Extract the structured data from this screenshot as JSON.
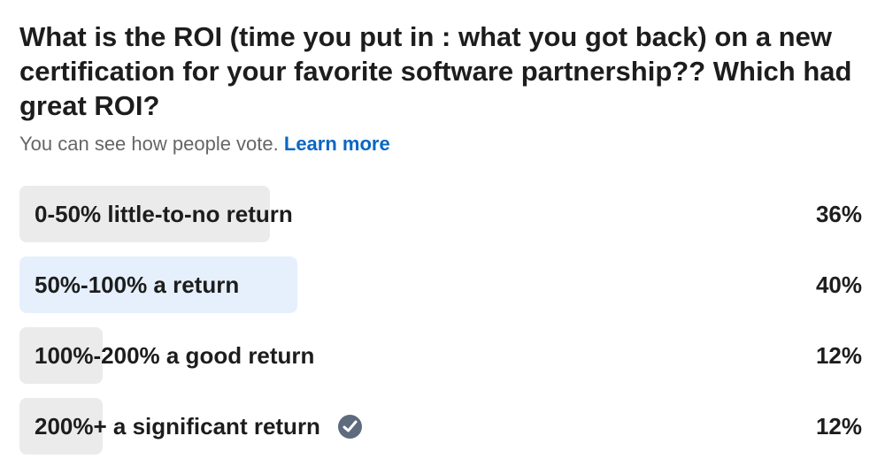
{
  "poll": {
    "question": "What is the ROI (time you put in : what you got back) on a new certification for your favorite software partnership?? Which had great ROI?",
    "visibility_note": "You can see how people vote.",
    "learn_more": "Learn more",
    "selected_color": "#e5f0fc",
    "bar_color": "#ebebeb",
    "options": [
      {
        "label": "0-50% little-to-no return",
        "percent_label": "36%",
        "percent": 36,
        "selected": false,
        "checked": false
      },
      {
        "label": "50%-100% a return",
        "percent_label": "40%",
        "percent": 40,
        "selected": true,
        "checked": false
      },
      {
        "label": "100%-200% a good return",
        "percent_label": "12%",
        "percent": 12,
        "selected": false,
        "checked": false
      },
      {
        "label": "200%+ a significant return",
        "percent_label": "12%",
        "percent": 12,
        "selected": false,
        "checked": true,
        "icon": "check-circle-icon"
      }
    ]
  }
}
